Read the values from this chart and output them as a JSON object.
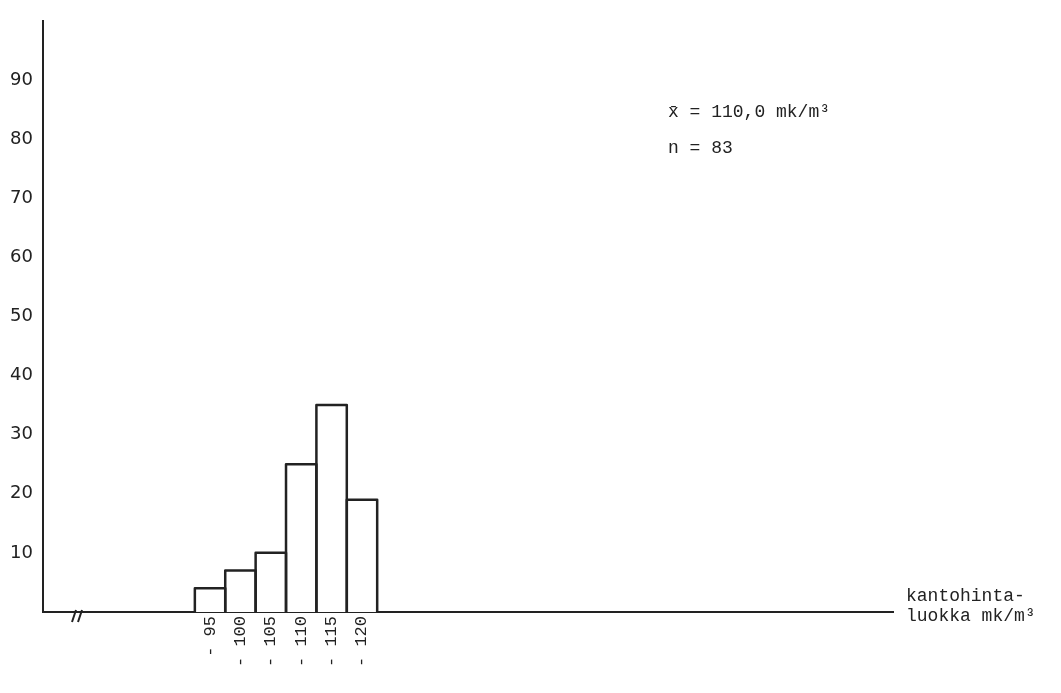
{
  "chart_data": {
    "type": "bar",
    "categories": [
      null,
      null,
      null,
      null,
      null,
      "- 95",
      "- 100",
      "- 105",
      "- 110",
      "- 115",
      "- 120",
      null,
      null,
      null,
      null,
      null,
      null,
      null,
      null,
      null,
      null,
      null,
      null,
      null,
      null,
      null,
      null,
      null
    ],
    "values": [
      null,
      null,
      null,
      null,
      null,
      4,
      7,
      10,
      25,
      35,
      19,
      null,
      null,
      null,
      null,
      null,
      null,
      null,
      null,
      null,
      null,
      null,
      null,
      null,
      null,
      null,
      null,
      null
    ],
    "color": "#ffffff",
    "ylim": [
      0,
      100
    ],
    "yticks": [
      10,
      20,
      30,
      40,
      50,
      60,
      70,
      80,
      90
    ],
    "grid": false,
    "xlabel": "kantohinta-luokka mk/m³",
    "annotations": [
      "x̄ = 110,0 mk/m³",
      "n = 83"
    ]
  }
}
